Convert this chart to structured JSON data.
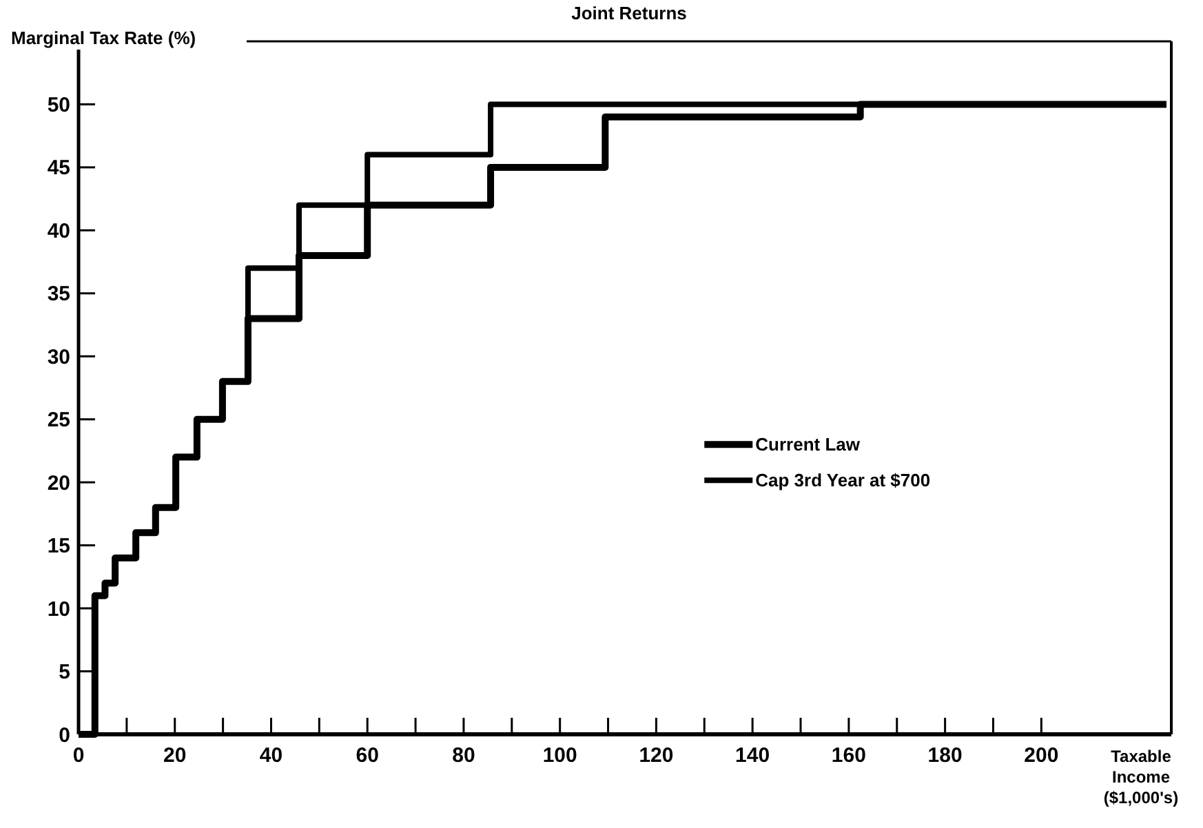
{
  "chart_data": {
    "type": "step",
    "title": "Joint Returns",
    "ylabel": "Marginal Tax Rate (%)",
    "xlabel": "Taxable Income ($1,000's)",
    "xlim": [
      0,
      227
    ],
    "ylim": [
      0,
      55
    ],
    "xticks": [
      0,
      {
        "value": 10,
        "label": null
      },
      20,
      {
        "value": 30,
        "label": null
      },
      40,
      {
        "value": 50,
        "label": null
      },
      60,
      {
        "value": 70,
        "label": null
      },
      80,
      {
        "value": 90,
        "label": null
      },
      100,
      {
        "value": 110,
        "label": null
      },
      120,
      {
        "value": 130,
        "label": null
      },
      140,
      {
        "value": 150,
        "label": null
      },
      160,
      {
        "value": 170,
        "label": null
      },
      180,
      {
        "value": 190,
        "label": null
      },
      200
    ],
    "yticks": [
      0,
      5,
      10,
      15,
      20,
      25,
      30,
      35,
      40,
      45,
      50
    ],
    "grid": false,
    "legend": "right",
    "marker": "none",
    "line_style": "solid",
    "series": [
      {
        "name": "Current Law",
        "color": "#000000",
        "x": [
          0,
          3.4,
          5.5,
          7.6,
          11.9,
          16,
          20.2,
          24.6,
          29.9,
          35.2,
          45.8,
          60,
          85.6,
          109.4,
          162.4,
          226
        ],
        "values": [
          0,
          11,
          12,
          14,
          16,
          18,
          22,
          25,
          28,
          33,
          38,
          42,
          45,
          49,
          50,
          50
        ]
      },
      {
        "name": "Cap 3rd Year at $700",
        "color": "#000000",
        "x": [
          0,
          3.4,
          5.5,
          7.6,
          11.9,
          16,
          20.2,
          24.6,
          29.9,
          35.2,
          45.8,
          60,
          85.6,
          226
        ],
        "values": [
          0,
          11,
          12,
          14,
          16,
          18,
          22,
          25,
          28,
          37,
          42,
          46,
          50,
          50
        ]
      }
    ]
  }
}
